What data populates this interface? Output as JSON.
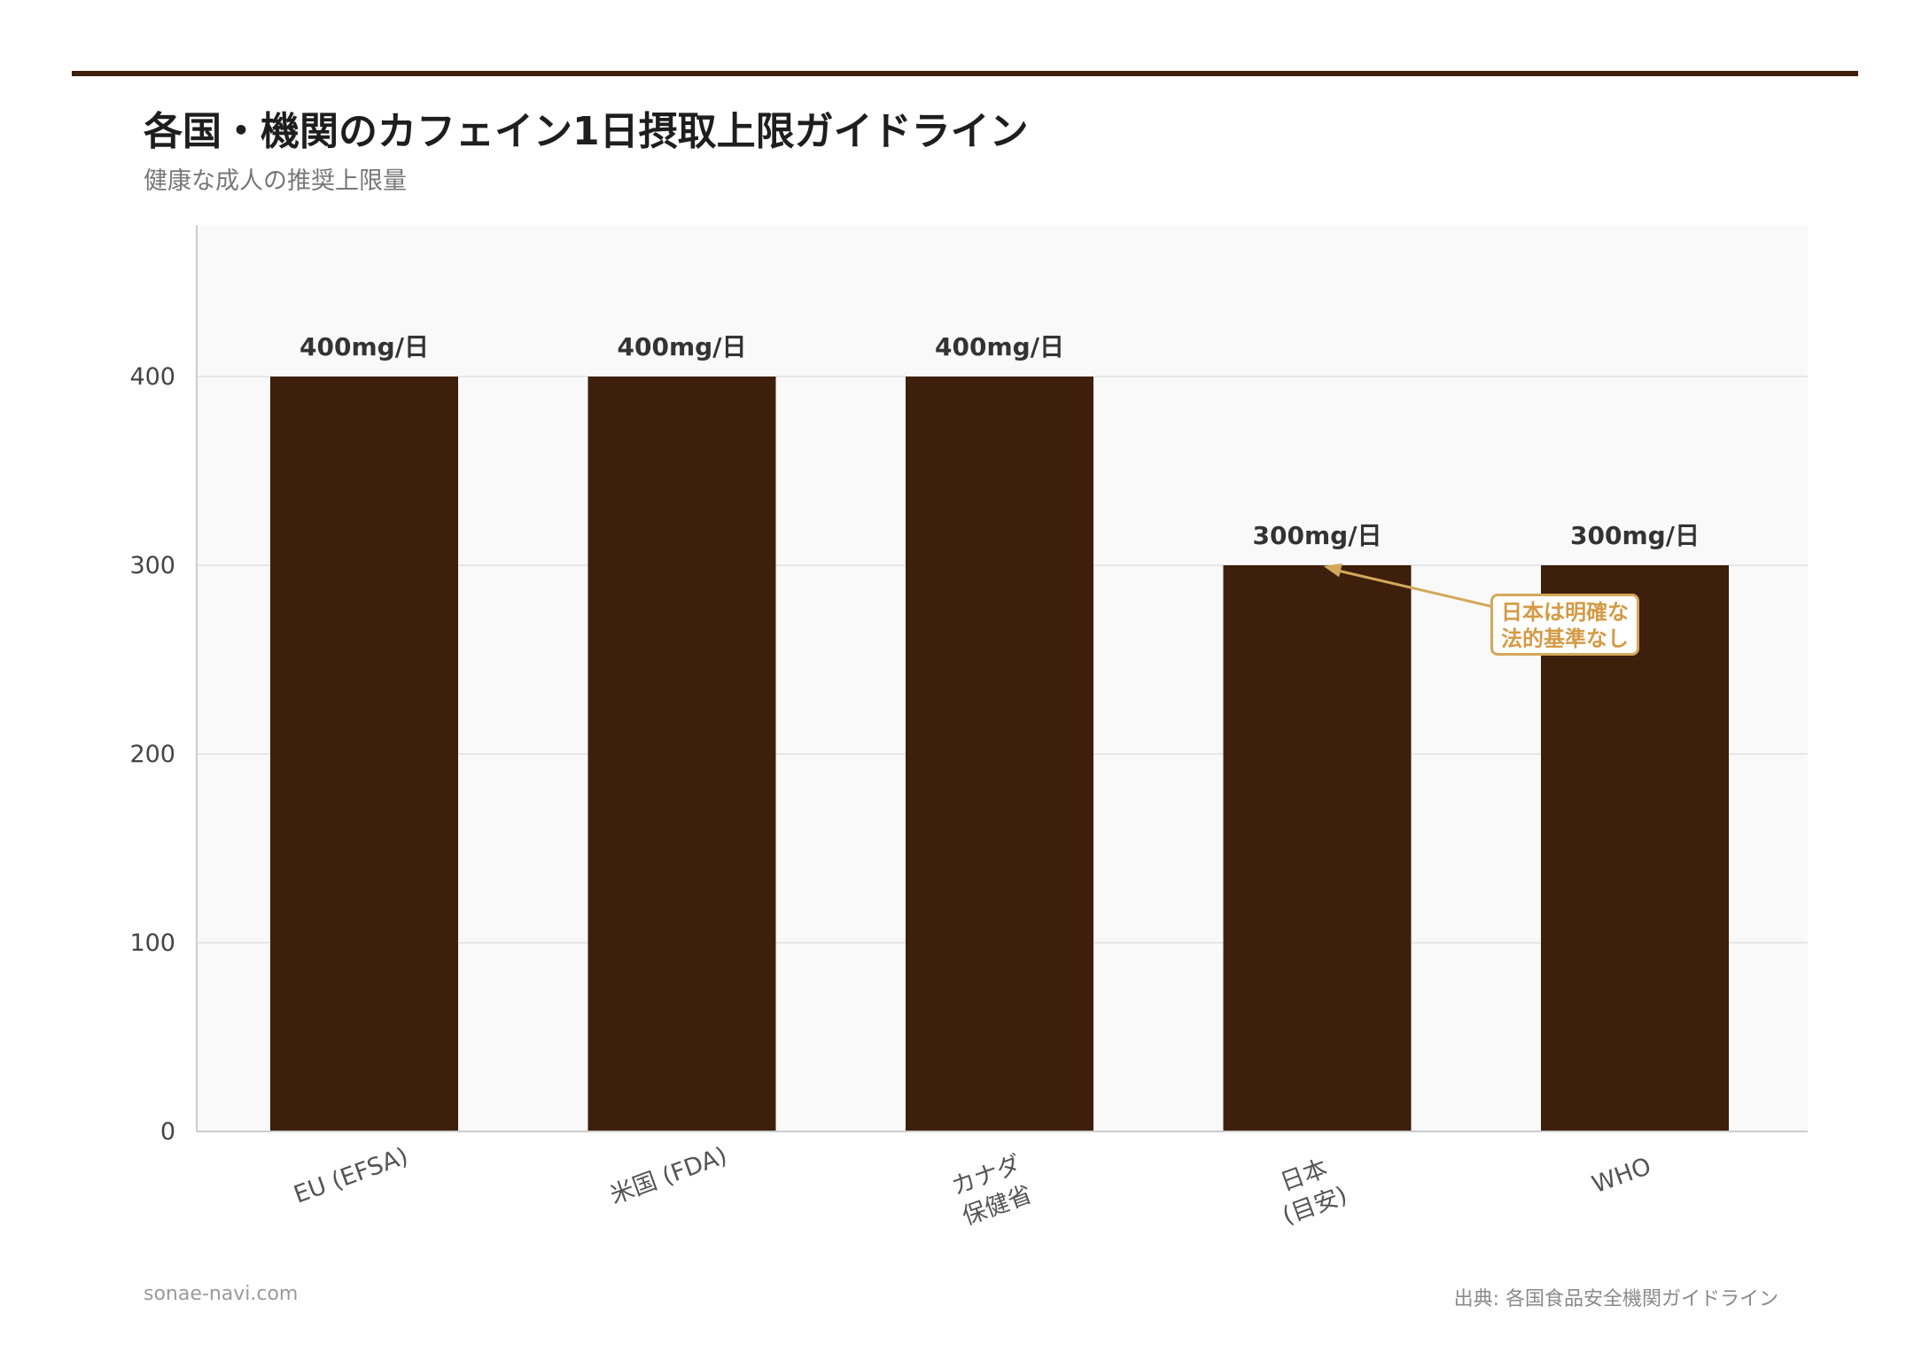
{
  "title": "各国・機関のカフェイン1日摂取上限ガイドライン",
  "subtitle": "健康な成人の推奨上限量",
  "footer": {
    "site": "sonae-navi.com",
    "source": "出典: 各国食品安全機関ガイドライン"
  },
  "annotation": {
    "line1": "日本は明確な",
    "line2": "法的基準なし",
    "target_category": "日本\n(目安)"
  },
  "colors": {
    "bar": "#3d1f0c",
    "accent": "#d4a85a",
    "plot_bg": "#f9f9f9",
    "grid": "#e6e6e6"
  },
  "chart_data": {
    "type": "bar",
    "title": "各国・機関のカフェイン1日摂取上限ガイドライン",
    "subtitle": "健康な成人の推奨上限量",
    "categories": [
      "EU (EFSA)",
      "米国 (FDA)",
      "カナダ\n保健省",
      "日本\n(目安)",
      "WHO"
    ],
    "values": [
      400,
      400,
      400,
      300,
      300
    ],
    "value_labels": [
      "400mg/日",
      "400mg/日",
      "400mg/日",
      "300mg/日",
      "300mg/日"
    ],
    "yticks": [
      0,
      100,
      200,
      300,
      400
    ],
    "ylim": [
      0,
      480
    ],
    "xlabel": "",
    "ylabel": "",
    "grid": true,
    "legend": "none"
  }
}
